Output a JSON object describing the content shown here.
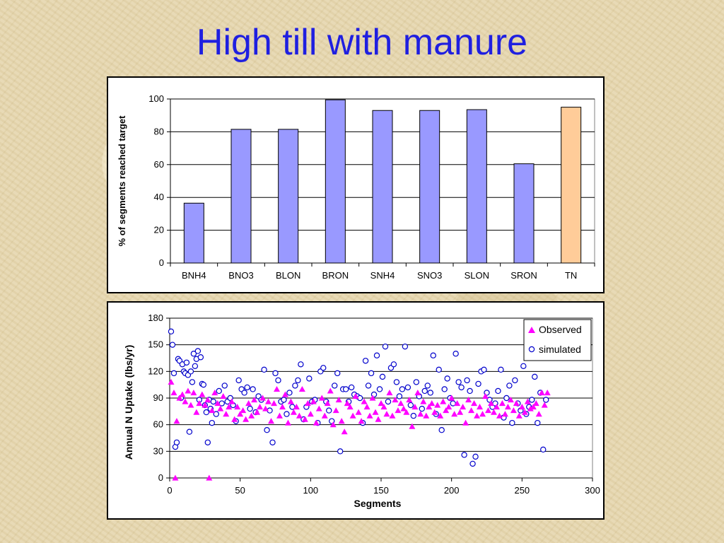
{
  "slide": {
    "title": "High till with manure"
  },
  "chart_data": [
    {
      "type": "bar",
      "categories": [
        "BNH4",
        "BNO3",
        "BLON",
        "BRON",
        "SNH4",
        "SNO3",
        "SLON",
        "SRON",
        "TN"
      ],
      "values": [
        36.5,
        81.5,
        81.5,
        99.5,
        93,
        93,
        93.5,
        60.5,
        95
      ],
      "colors": [
        "#9999ff",
        "#9999ff",
        "#9999ff",
        "#9999ff",
        "#9999ff",
        "#9999ff",
        "#9999ff",
        "#9999ff",
        "#ffcc99"
      ],
      "ylabel": "% of segments reached target",
      "ylim": [
        0,
        100
      ],
      "yticks": [
        0,
        20,
        40,
        60,
        80,
        100
      ],
      "grid": true
    },
    {
      "type": "scatter",
      "xlabel": "Segments",
      "ylabel": "Annual N Uptake (lbs/yr)",
      "xlim": [
        0,
        300
      ],
      "ylim": [
        0,
        180
      ],
      "xticks": [
        0,
        50,
        100,
        150,
        200,
        250,
        300
      ],
      "yticks": [
        0,
        30,
        60,
        90,
        120,
        150,
        180
      ],
      "grid": true,
      "legend_position": "top-right",
      "series": [
        {
          "name": "Observed",
          "marker": "triangle",
          "color": "#ff00ff",
          "x": [
            1,
            3,
            4,
            5,
            7,
            9,
            11,
            13,
            15,
            17,
            19,
            21,
            23,
            25,
            27,
            28,
            30,
            32,
            34,
            36,
            38,
            40,
            42,
            44,
            46,
            48,
            50,
            52,
            54,
            56,
            58,
            60,
            62,
            64,
            66,
            68,
            70,
            72,
            74,
            76,
            78,
            80,
            82,
            84,
            86,
            88,
            90,
            92,
            94,
            96,
            98,
            100,
            102,
            104,
            106,
            108,
            110,
            112,
            114,
            116,
            118,
            120,
            122,
            124,
            126,
            128,
            130,
            132,
            134,
            136,
            138,
            140,
            142,
            144,
            146,
            148,
            150,
            152,
            154,
            156,
            158,
            160,
            162,
            164,
            166,
            168,
            170,
            172,
            174,
            176,
            178,
            180,
            182,
            184,
            186,
            188,
            190,
            192,
            194,
            196,
            198,
            200,
            202,
            204,
            206,
            208,
            210,
            212,
            214,
            216,
            218,
            220,
            222,
            224,
            226,
            228,
            230,
            232,
            234,
            236,
            238,
            240,
            242,
            244,
            246,
            248,
            250,
            252,
            254,
            256,
            258,
            260,
            262,
            264,
            266,
            268
          ],
          "y": [
            108,
            96,
            0,
            64,
            90,
            94,
            86,
            98,
            82,
            96,
            74,
            84,
            94,
            82,
            88,
            0,
            76,
            96,
            84,
            78,
            92,
            72,
            80,
            86,
            66,
            80,
            72,
            76,
            66,
            84,
            70,
            88,
            74,
            80,
            90,
            78,
            86,
            64,
            84,
            100,
            70,
            80,
            94,
            62,
            86,
            74,
            80,
            70,
            100,
            66,
            84,
            72,
            86,
            62,
            78,
            90,
            70,
            84,
            98,
            60,
            76,
            88,
            64,
            52,
            84,
            80,
            70,
            92,
            74,
            64,
            86,
            80,
            70,
            90,
            74,
            66,
            84,
            80,
            72,
            96,
            70,
            88,
            76,
            84,
            78,
            74,
            88,
            58,
            80,
            96,
            72,
            86,
            70,
            80,
            84,
            74,
            82,
            70,
            86,
            76,
            80,
            90,
            72,
            84,
            74,
            80,
            62,
            88,
            76,
            84,
            70,
            80,
            72,
            92,
            76,
            84,
            74,
            80,
            70,
            84,
            72,
            80,
            88,
            76,
            84,
            70,
            80,
            74,
            86,
            78,
            80,
            84,
            72,
            96,
            82,
            96
          ]
        },
        {
          "name": "simulated",
          "marker": "circle",
          "color": "#0000cc",
          "x": [
            1,
            2,
            3,
            4,
            5,
            6,
            7,
            8,
            9,
            10,
            11,
            12,
            13,
            14,
            15,
            16,
            17,
            18,
            19,
            20,
            21,
            22,
            23,
            24,
            25,
            26,
            27,
            28,
            29,
            30,
            31,
            33,
            35,
            37,
            39,
            41,
            43,
            45,
            47,
            49,
            51,
            53,
            55,
            57,
            59,
            61,
            63,
            65,
            67,
            69,
            71,
            73,
            75,
            77,
            79,
            81,
            83,
            85,
            87,
            89,
            91,
            93,
            95,
            97,
            99,
            101,
            103,
            105,
            107,
            109,
            111,
            113,
            115,
            117,
            119,
            121,
            123,
            125,
            127,
            129,
            131,
            133,
            135,
            137,
            139,
            141,
            143,
            145,
            147,
            149,
            151,
            153,
            155,
            157,
            159,
            161,
            163,
            165,
            167,
            169,
            171,
            173,
            175,
            177,
            179,
            181,
            183,
            185,
            187,
            189,
            191,
            193,
            195,
            197,
            199,
            201,
            203,
            205,
            207,
            209,
            211,
            213,
            215,
            217,
            219,
            221,
            223,
            225,
            227,
            229,
            231,
            233,
            235,
            237,
            239,
            241,
            243,
            245,
            247,
            249,
            251,
            253,
            255,
            257,
            259,
            261,
            263,
            265,
            267
          ],
          "y": [
            165,
            150,
            118,
            35,
            40,
            134,
            132,
            90,
            128,
            120,
            118,
            130,
            116,
            52,
            120,
            108,
            140,
            126,
            134,
            143,
            88,
            136,
            106,
            105,
            82,
            74,
            40,
            88,
            78,
            62,
            86,
            72,
            98,
            84,
            104,
            86,
            90,
            82,
            64,
            110,
            100,
            96,
            102,
            78,
            100,
            74,
            92,
            88,
            122,
            54,
            76,
            40,
            118,
            110,
            86,
            88,
            72,
            96,
            80,
            104,
            110,
            128,
            66,
            80,
            112,
            86,
            88,
            62,
            120,
            124,
            86,
            76,
            64,
            104,
            118,
            30,
            100,
            100,
            86,
            102,
            94,
            92,
            90,
            62,
            132,
            104,
            118,
            94,
            138,
            100,
            114,
            148,
            86,
            124,
            128,
            108,
            92,
            100,
            148,
            102,
            82,
            70,
            108,
            92,
            78,
            98,
            104,
            96,
            138,
            72,
            122,
            54,
            100,
            112,
            90,
            84,
            140,
            108,
            102,
            26,
            110,
            98,
            16,
            24,
            106,
            120,
            122,
            96,
            88,
            80,
            84,
            98,
            122,
            68,
            90,
            104,
            62,
            110,
            84,
            76,
            126,
            72,
            80,
            88,
            114,
            62,
            96,
            32,
            88
          ]
        }
      ]
    }
  ]
}
